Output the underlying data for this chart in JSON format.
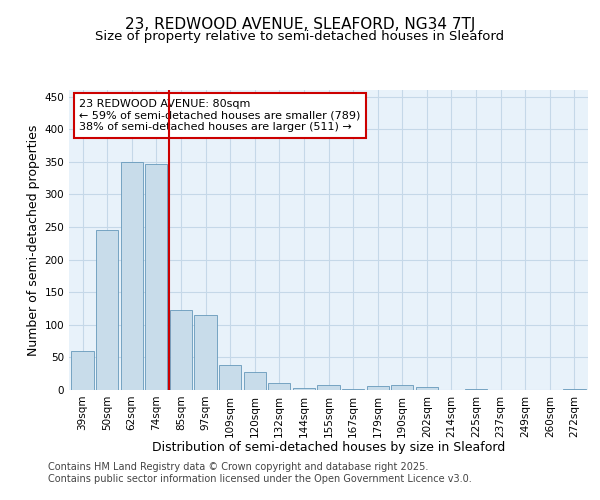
{
  "title_line1": "23, REDWOOD AVENUE, SLEAFORD, NG34 7TJ",
  "title_line2": "Size of property relative to semi-detached houses in Sleaford",
  "xlabel": "Distribution of semi-detached houses by size in Sleaford",
  "ylabel": "Number of semi-detached properties",
  "categories": [
    "39sqm",
    "50sqm",
    "62sqm",
    "74sqm",
    "85sqm",
    "97sqm",
    "109sqm",
    "120sqm",
    "132sqm",
    "144sqm",
    "155sqm",
    "167sqm",
    "179sqm",
    "190sqm",
    "202sqm",
    "214sqm",
    "225sqm",
    "237sqm",
    "249sqm",
    "260sqm",
    "272sqm"
  ],
  "values": [
    60,
    245,
    350,
    347,
    122,
    115,
    38,
    28,
    10,
    3,
    7,
    1,
    6,
    7,
    4,
    0,
    1,
    0,
    0,
    0,
    2
  ],
  "bar_color": "#c8dcea",
  "bar_edge_color": "#6699bb",
  "grid_color": "#c5d8e8",
  "background_color": "#e8f2fa",
  "red_line_color": "#cc0000",
  "red_line_x": 3.5,
  "annotation_text": "23 REDWOOD AVENUE: 80sqm\n← 59% of semi-detached houses are smaller (789)\n38% of semi-detached houses are larger (511) →",
  "annotation_box_facecolor": "#ffffff",
  "annotation_box_edgecolor": "#cc0000",
  "ylim": [
    0,
    460
  ],
  "yticks": [
    0,
    50,
    100,
    150,
    200,
    250,
    300,
    350,
    400,
    450
  ],
  "footer_text": "Contains HM Land Registry data © Crown copyright and database right 2025.\nContains public sector information licensed under the Open Government Licence v3.0.",
  "title_fontsize": 11,
  "subtitle_fontsize": 9.5,
  "axis_label_fontsize": 9,
  "tick_fontsize": 7.5,
  "annotation_fontsize": 8,
  "footer_fontsize": 7
}
